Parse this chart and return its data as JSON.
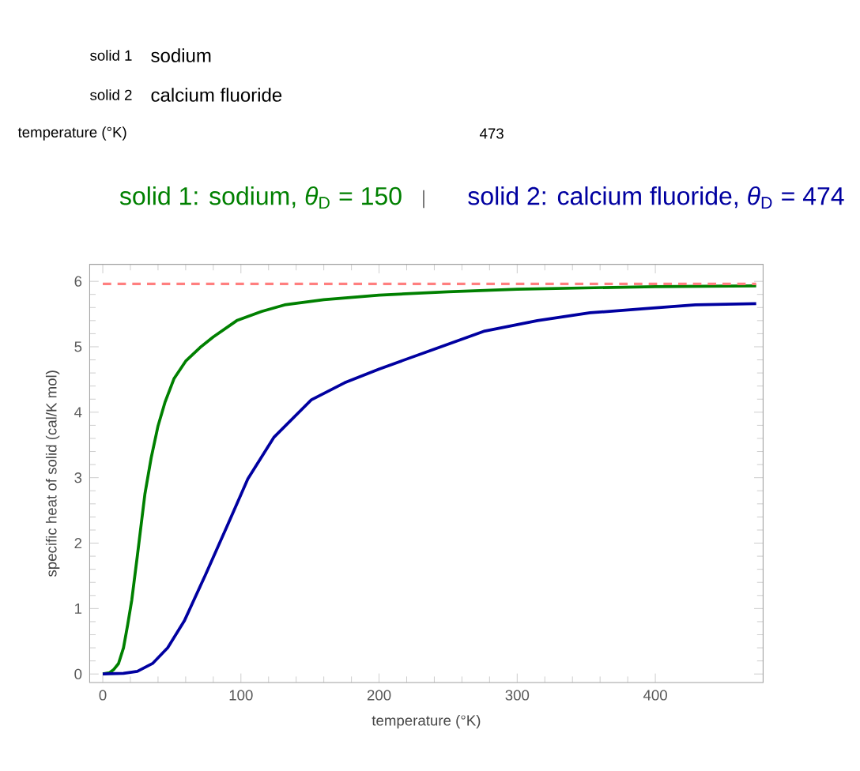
{
  "chart_data": {
    "type": "line",
    "xlabel": "temperature (°K)",
    "ylabel": "specific heat of solid (cal/K mol)",
    "xlim": [
      -9.5,
      478
    ],
    "ylim": [
      -0.13,
      6.26
    ],
    "xticks": [
      0,
      100,
      200,
      300,
      400
    ],
    "yticks": [
      0,
      1,
      2,
      3,
      4,
      5,
      6
    ],
    "legend": false,
    "grid": false,
    "marker": "none",
    "line_style": "solid",
    "series": [
      {
        "name": "solid 1: sodium, *θ*$_{D}$ = 150",
        "color": "#008000",
        "x": [
          0,
          5,
          8,
          11.4,
          15,
          18,
          21,
          25,
          30.5,
          35,
          40,
          45,
          51.5,
          60,
          70.5,
          80,
          97,
          115,
          131.6,
          160,
          200,
          250,
          300,
          400,
          473
        ],
        "values": [
          0,
          0.02,
          0.07,
          0.16,
          0.4,
          0.75,
          1.13,
          1.8,
          2.75,
          3.3,
          3.79,
          4.15,
          4.51,
          4.78,
          4.99,
          5.15,
          5.4,
          5.54,
          5.64,
          5.72,
          5.79,
          5.84,
          5.88,
          5.92,
          5.93
        ]
      },
      {
        "name": "solid 2: calcium fluoride, *θ*$_{D}$ = 474",
        "color": "#0000a0",
        "x": [
          0,
          15,
          25,
          36,
          47,
          59,
          74,
          90,
          105,
          124,
          151,
          175,
          200,
          238,
          276.5,
          314.6,
          352.8,
          391,
          429,
          473
        ],
        "values": [
          0,
          0.01,
          0.04,
          0.16,
          0.4,
          0.81,
          1.5,
          2.26,
          2.98,
          3.62,
          4.19,
          4.45,
          4.66,
          4.95,
          5.24,
          5.4,
          5.52,
          5.58,
          5.64,
          5.66
        ]
      }
    ],
    "ref_lines": [
      {
        "axis": "y",
        "value": 5.96,
        "color": "#ff7f7f",
        "line_style": "dashed"
      }
    ],
    "annotations": [
      "solid 1",
      "sodium",
      "solid 2",
      "calcium fluoride",
      "temperature (°K)",
      "473",
      "|"
    ]
  }
}
